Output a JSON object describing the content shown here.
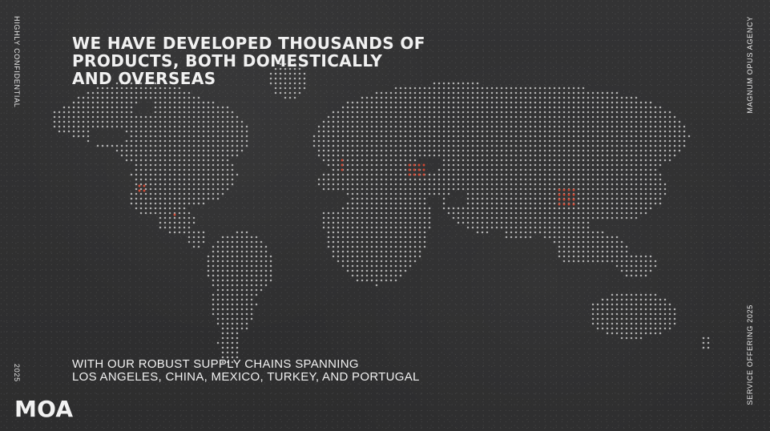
{
  "headline_lines": [
    "WE HAVE DEVELOPED THOUSANDS OF",
    "PRODUCTS, BOTH DOMESTICALLY",
    "AND OVERSEAS"
  ],
  "subtext_lines": [
    "WITH OUR ROBUST SUPPLY CHAINS SPANNING",
    "LOS ANGELES, CHINA, MEXICO, TURKEY, AND PORTUGAL"
  ],
  "left_top_label": "HIGHLY CONFIDENTIAL",
  "left_bottom_label": "2025",
  "right_top_label": "MAGNUM OPUS AGENCY",
  "right_bottom_label": "SERVICE OFFERING 2025",
  "brand": "MOA",
  "colors": {
    "background": "#2f2f30",
    "dot": "#c9c9c9",
    "highlight": "#cf4a35",
    "text": "#f1f1f1"
  }
}
